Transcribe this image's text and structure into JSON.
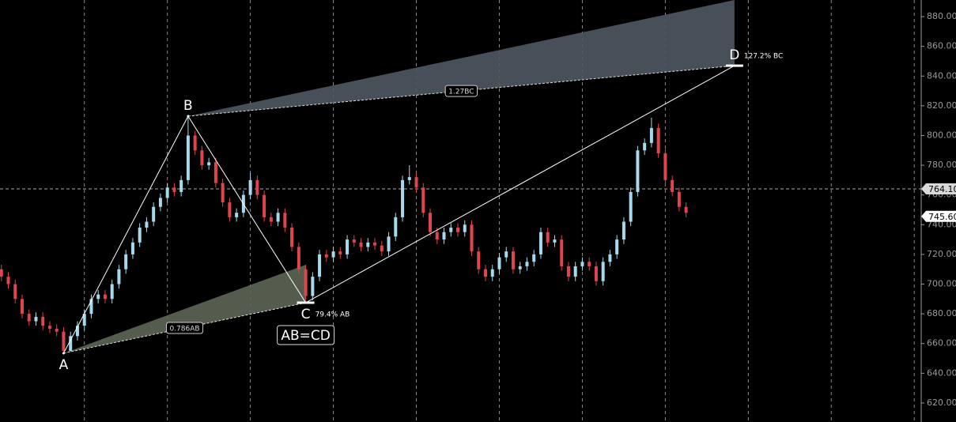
{
  "chart_data": {
    "type": "candlestick",
    "open": [
      710,
      705,
      700,
      690,
      680,
      675,
      678,
      672,
      670,
      668,
      655,
      665,
      672,
      680,
      690,
      693,
      690,
      700,
      710,
      720,
      728,
      738,
      742,
      752,
      758,
      765,
      762,
      770,
      800,
      790,
      780,
      782,
      768,
      755,
      745,
      748,
      760,
      770,
      760,
      745,
      742,
      748,
      738,
      725,
      710,
      692,
      705,
      720,
      718,
      722,
      720,
      730,
      728,
      725,
      728,
      726,
      722,
      732,
      745,
      770,
      772,
      765,
      748,
      735,
      730,
      735,
      738,
      735,
      740,
      722,
      710,
      705,
      710,
      718,
      722,
      710,
      712,
      715,
      720,
      735,
      728,
      730,
      712,
      705,
      712,
      715,
      712,
      702,
      715,
      720,
      730,
      742,
      762,
      790,
      795,
      805,
      788,
      770,
      762,
      752
    ],
    "high": [
      713,
      708,
      703,
      693,
      683,
      681,
      681,
      675,
      673,
      671,
      668,
      675,
      683,
      693,
      696,
      696,
      703,
      713,
      723,
      731,
      741,
      745,
      755,
      761,
      768,
      768,
      773,
      813,
      803,
      793,
      785,
      785,
      771,
      758,
      751,
      763,
      775,
      773,
      763,
      748,
      751,
      751,
      741,
      728,
      713,
      708,
      723,
      723,
      725,
      725,
      733,
      733,
      731,
      731,
      731,
      729,
      735,
      748,
      773,
      780,
      775,
      768,
      751,
      738,
      738,
      741,
      741,
      743,
      743,
      725,
      713,
      713,
      721,
      725,
      725,
      715,
      718,
      723,
      738,
      738,
      733,
      733,
      715,
      715,
      718,
      718,
      715,
      718,
      723,
      733,
      745,
      765,
      793,
      798,
      812,
      808,
      791,
      773,
      765,
      755
    ],
    "low": [
      702,
      697,
      687,
      677,
      672,
      672,
      669,
      667,
      665,
      653,
      655,
      662,
      669,
      677,
      687,
      687,
      687,
      697,
      707,
      717,
      725,
      735,
      739,
      749,
      755,
      759,
      759,
      767,
      787,
      777,
      777,
      765,
      752,
      742,
      742,
      745,
      757,
      757,
      742,
      739,
      739,
      735,
      722,
      707,
      687,
      689,
      702,
      715,
      715,
      717,
      717,
      725,
      722,
      722,
      723,
      719,
      719,
      729,
      742,
      767,
      762,
      745,
      732,
      727,
      727,
      732,
      732,
      732,
      719,
      707,
      702,
      702,
      707,
      715,
      707,
      707,
      709,
      712,
      717,
      725,
      725,
      709,
      702,
      702,
      709,
      709,
      699,
      699,
      712,
      717,
      727,
      739,
      759,
      787,
      792,
      785,
      767,
      759,
      749,
      745
    ],
    "close": [
      705,
      700,
      690,
      680,
      675,
      678,
      672,
      670,
      668,
      655,
      665,
      672,
      680,
      690,
      693,
      690,
      700,
      710,
      720,
      728,
      738,
      742,
      752,
      758,
      765,
      762,
      770,
      800,
      790,
      780,
      782,
      768,
      755,
      745,
      748,
      760,
      770,
      760,
      745,
      742,
      748,
      738,
      725,
      710,
      692,
      705,
      720,
      718,
      722,
      720,
      730,
      728,
      725,
      728,
      726,
      722,
      732,
      745,
      770,
      772,
      765,
      748,
      735,
      730,
      735,
      738,
      735,
      740,
      722,
      710,
      705,
      710,
      718,
      722,
      710,
      712,
      715,
      720,
      735,
      728,
      730,
      712,
      705,
      712,
      715,
      712,
      702,
      715,
      720,
      730,
      742,
      762,
      790,
      795,
      805,
      788,
      770,
      762,
      752,
      748
    ],
    "up_color": "#a6d9ec",
    "down_color": "#e0444c",
    "xlim": [
      -0.2,
      133
    ],
    "xticks": [
      12,
      24,
      36,
      48,
      60,
      72,
      84,
      96,
      108,
      120,
      132
    ],
    "ylim": [
      607.2,
      891.2
    ],
    "yticks": [
      {
        "value": 620,
        "label": "620.00"
      },
      {
        "value": 640,
        "label": "640.00"
      },
      {
        "value": 660,
        "label": "660.00"
      },
      {
        "value": 680,
        "label": "680.00"
      },
      {
        "value": 700,
        "label": "700.00"
      },
      {
        "value": 720,
        "label": "720.00"
      },
      {
        "value": 740,
        "label": "740.00"
      },
      {
        "value": 760,
        "label": "760.00"
      },
      {
        "value": 780,
        "label": "780.00"
      },
      {
        "value": 800,
        "label": "800.00"
      },
      {
        "value": 820,
        "label": "820.00"
      },
      {
        "value": 840,
        "label": "840.00"
      },
      {
        "value": 860,
        "label": "860.00"
      },
      {
        "value": 880,
        "label": "880.00"
      }
    ],
    "price_markers": [
      {
        "value": 764.1,
        "label": "764.10"
      },
      {
        "value": 745.6,
        "label": "745.60"
      }
    ],
    "pattern": {
      "title": "AB=CD",
      "points": [
        {
          "label": "A",
          "x": 9,
          "price": 653.5
        },
        {
          "label": "B",
          "x": 27,
          "price": 813
        },
        {
          "label": "C",
          "x": 44,
          "price": 687.5,
          "note": "79.4% AB"
        },
        {
          "label": "D",
          "x": 106,
          "price": 847,
          "note": "127.2% BC"
        }
      ],
      "zones": [
        {
          "label": "0.786AB",
          "x": [
            9,
            44,
            44
          ],
          "price": [
            653.5,
            713,
            687.5
          ],
          "color": "#5d6657"
        },
        {
          "label": "1.27BC",
          "x": [
            27,
            106,
            106
          ],
          "price": [
            813,
            891.2,
            847
          ],
          "color": "#4f5862"
        }
      ]
    }
  }
}
